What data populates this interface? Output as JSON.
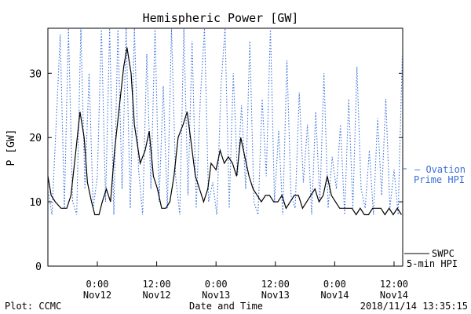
{
  "chart_data": {
    "type": "line",
    "title": "Hemispheric Power [GW]",
    "ylabel": "P [GW]",
    "xlabel": "Date and Time",
    "ylim": [
      0,
      37
    ],
    "yticks": [
      0,
      10,
      20,
      30
    ],
    "x_range": [
      "2018-11-11T14:00",
      "2018-11-14T13:45"
    ],
    "xticks": [
      {
        "x": "2018-11-12T00:00",
        "line1": "0:00",
        "line2": "Nov12"
      },
      {
        "x": "2018-11-12T12:00",
        "line1": "12:00",
        "line2": "Nov12"
      },
      {
        "x": "2018-11-13T00:00",
        "line1": "0:00",
        "line2": "Nov13"
      },
      {
        "x": "2018-11-13T12:00",
        "line1": "12:00",
        "line2": "Nov13"
      },
      {
        "x": "2018-11-14T00:00",
        "line1": "0:00",
        "line2": "Nov14"
      },
      {
        "x": "2018-11-14T12:00",
        "line1": "12:00",
        "line2": "Nov14"
      }
    ],
    "grid": false,
    "legend_position": "right",
    "series": [
      {
        "name": "SWPC 5-min HPI",
        "legend_line1": "SWPC",
        "legend_line2": "5-min HPI",
        "color": "#000000",
        "style": "solid",
        "x": [
          "2018-11-11T14:00",
          "2018-11-11T14:40",
          "2018-11-11T15:30",
          "2018-11-11T16:40",
          "2018-11-11T17:50",
          "2018-11-11T18:40",
          "2018-11-11T19:40",
          "2018-11-11T20:30",
          "2018-11-11T21:20",
          "2018-11-11T22:00",
          "2018-11-11T22:50",
          "2018-11-11T23:30",
          "2018-11-12T00:20",
          "2018-11-12T01:00",
          "2018-11-12T01:50",
          "2018-11-12T02:40",
          "2018-11-12T03:30",
          "2018-11-12T04:20",
          "2018-11-12T05:20",
          "2018-11-12T06:00",
          "2018-11-12T06:50",
          "2018-11-12T07:30",
          "2018-11-12T08:40",
          "2018-11-12T09:40",
          "2018-11-12T10:30",
          "2018-11-12T11:20",
          "2018-11-12T12:10",
          "2018-11-12T13:00",
          "2018-11-12T13:50",
          "2018-11-12T14:40",
          "2018-11-12T15:30",
          "2018-11-12T16:20",
          "2018-11-12T17:20",
          "2018-11-12T18:10",
          "2018-11-12T19:00",
          "2018-11-12T19:50",
          "2018-11-12T20:40",
          "2018-11-12T21:30",
          "2018-11-12T22:20",
          "2018-11-12T23:00",
          "2018-11-13T00:00",
          "2018-11-13T00:50",
          "2018-11-13T01:40",
          "2018-11-13T02:30",
          "2018-11-13T03:20",
          "2018-11-13T04:10",
          "2018-11-13T05:00",
          "2018-11-13T05:50",
          "2018-11-13T06:40",
          "2018-11-13T07:30",
          "2018-11-13T08:20",
          "2018-11-13T09:10",
          "2018-11-13T10:00",
          "2018-11-13T10:50",
          "2018-11-13T11:40",
          "2018-11-13T12:30",
          "2018-11-13T13:20",
          "2018-11-13T14:10",
          "2018-11-13T15:00",
          "2018-11-13T15:50",
          "2018-11-13T16:40",
          "2018-11-13T17:30",
          "2018-11-13T18:20",
          "2018-11-13T19:10",
          "2018-11-13T20:00",
          "2018-11-13T20:50",
          "2018-11-13T21:40",
          "2018-11-13T22:30",
          "2018-11-13T23:20",
          "2018-11-14T00:10",
          "2018-11-14T01:00",
          "2018-11-14T01:50",
          "2018-11-14T02:40",
          "2018-11-14T03:30",
          "2018-11-14T04:20",
          "2018-11-14T05:10",
          "2018-11-14T06:00",
          "2018-11-14T06:50",
          "2018-11-14T07:40",
          "2018-11-14T08:30",
          "2018-11-14T09:20",
          "2018-11-14T10:10",
          "2018-11-14T11:00",
          "2018-11-14T11:50",
          "2018-11-14T12:40",
          "2018-11-14T13:30"
        ],
        "y": [
          14,
          11,
          10,
          9,
          9,
          11,
          18,
          24,
          20,
          13,
          10,
          8,
          8,
          10,
          12,
          10,
          18,
          24,
          31,
          34,
          30,
          22,
          16,
          18,
          21,
          14,
          12,
          9,
          9,
          10,
          14,
          20,
          22,
          24,
          19,
          14,
          12,
          10,
          12,
          16,
          15,
          18,
          16,
          17,
          16,
          14,
          20,
          17,
          14,
          12,
          11,
          10,
          11,
          11,
          10,
          10,
          11,
          9,
          10,
          11,
          11,
          9,
          10,
          11,
          12,
          10,
          11,
          14,
          11,
          10,
          9,
          9,
          9,
          9,
          8,
          9,
          8,
          8,
          9,
          9,
          9,
          8,
          9,
          8,
          9,
          8
        ]
      },
      {
        "name": "Ovation Prime HPI",
        "legend_line1": "— Ovation",
        "legend_line2": "Prime HPI",
        "color": "#3a6fd8",
        "style": "dotted",
        "x": [
          "2018-11-11T14:00",
          "2018-11-11T14:50",
          "2018-11-11T15:40",
          "2018-11-11T16:30",
          "2018-11-11T17:20",
          "2018-11-11T18:10",
          "2018-11-11T19:00",
          "2018-11-11T19:50",
          "2018-11-11T20:40",
          "2018-11-11T21:30",
          "2018-11-11T22:20",
          "2018-11-11T23:10",
          "2018-11-12T00:00",
          "2018-11-12T00:50",
          "2018-11-12T01:40",
          "2018-11-12T02:30",
          "2018-11-12T03:20",
          "2018-11-12T04:10",
          "2018-11-12T05:00",
          "2018-11-12T05:50",
          "2018-11-12T06:40",
          "2018-11-12T07:30",
          "2018-11-12T08:20",
          "2018-11-12T09:10",
          "2018-11-12T10:00",
          "2018-11-12T10:50",
          "2018-11-12T11:40",
          "2018-11-12T12:30",
          "2018-11-12T13:20",
          "2018-11-12T14:10",
          "2018-11-12T15:00",
          "2018-11-12T15:50",
          "2018-11-12T16:40",
          "2018-11-12T17:30",
          "2018-11-12T18:20",
          "2018-11-12T19:10",
          "2018-11-12T20:00",
          "2018-11-12T20:50",
          "2018-11-12T21:40",
          "2018-11-12T22:30",
          "2018-11-12T23:20",
          "2018-11-13T00:10",
          "2018-11-13T01:00",
          "2018-11-13T01:50",
          "2018-11-13T02:40",
          "2018-11-13T03:30",
          "2018-11-13T04:20",
          "2018-11-13T05:10",
          "2018-11-13T06:00",
          "2018-11-13T06:50",
          "2018-11-13T07:40",
          "2018-11-13T08:30",
          "2018-11-13T09:20",
          "2018-11-13T10:10",
          "2018-11-13T11:00",
          "2018-11-13T11:50",
          "2018-11-13T12:40",
          "2018-11-13T13:30",
          "2018-11-13T14:20",
          "2018-11-13T15:10",
          "2018-11-13T16:00",
          "2018-11-13T16:50",
          "2018-11-13T17:40",
          "2018-11-13T18:30",
          "2018-11-13T19:20",
          "2018-11-13T20:10",
          "2018-11-13T21:00",
          "2018-11-13T21:50",
          "2018-11-13T22:40",
          "2018-11-13T23:30",
          "2018-11-14T00:20",
          "2018-11-14T01:10",
          "2018-11-14T02:00",
          "2018-11-14T02:50",
          "2018-11-14T03:40",
          "2018-11-14T04:30",
          "2018-11-14T05:20",
          "2018-11-14T06:10",
          "2018-11-14T07:00",
          "2018-11-14T07:50",
          "2018-11-14T08:40",
          "2018-11-14T09:30",
          "2018-11-14T10:20",
          "2018-11-14T11:10",
          "2018-11-14T12:00",
          "2018-11-14T12:50",
          "2018-11-14T13:40"
        ],
        "y": [
          12,
          8,
          22,
          36,
          9,
          37,
          10,
          8,
          37,
          12,
          30,
          9,
          14,
          37,
          10,
          37,
          8,
          37,
          12,
          37,
          9,
          37,
          15,
          8,
          33,
          12,
          37,
          10,
          28,
          9,
          37,
          14,
          8,
          37,
          11,
          35,
          9,
          26,
          37,
          10,
          13,
          8,
          28,
          37,
          9,
          30,
          14,
          25,
          12,
          35,
          10,
          8,
          26,
          14,
          37,
          10,
          21,
          8,
          32,
          11,
          9,
          27,
          13,
          22,
          8,
          24,
          10,
          30,
          9,
          17,
          12,
          22,
          8,
          26,
          9,
          31,
          12,
          9,
          18,
          8,
          23,
          11,
          26,
          9,
          15,
          8,
          33
        ]
      }
    ]
  },
  "footer": {
    "left": "Plot: CCMC",
    "center": "Date and Time",
    "right": "2018/11/14 13:35:15"
  }
}
